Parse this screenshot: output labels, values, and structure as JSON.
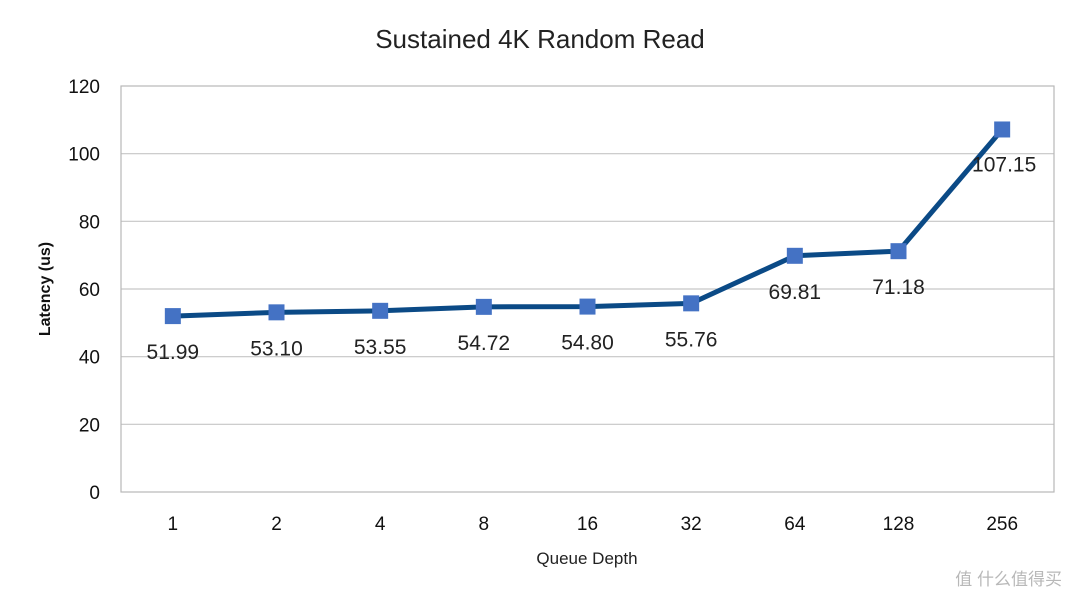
{
  "chart_data": {
    "type": "line",
    "title": "Sustained 4K Random Read",
    "xlabel": "Queue Depth",
    "ylabel": "Latency (us)",
    "ylim": [
      0,
      120
    ],
    "yticks": [
      0,
      20,
      40,
      60,
      80,
      100,
      120
    ],
    "categories": [
      "1",
      "2",
      "4",
      "8",
      "16",
      "32",
      "64",
      "128",
      "256"
    ],
    "series": [
      {
        "values": [
          51.99,
          53.1,
          53.55,
          54.72,
          54.8,
          55.76,
          69.81,
          71.18,
          107.15
        ],
        "labels": [
          "51.99",
          "53.10",
          "53.55",
          "54.72",
          "54.80",
          "55.76",
          "69.81",
          "71.18",
          "107.15"
        ],
        "line_color": "#0b4a86",
        "marker_color": "#4472c4"
      }
    ],
    "grid": true,
    "legend": "none"
  },
  "watermark": {
    "text": "值 什么值得买"
  }
}
